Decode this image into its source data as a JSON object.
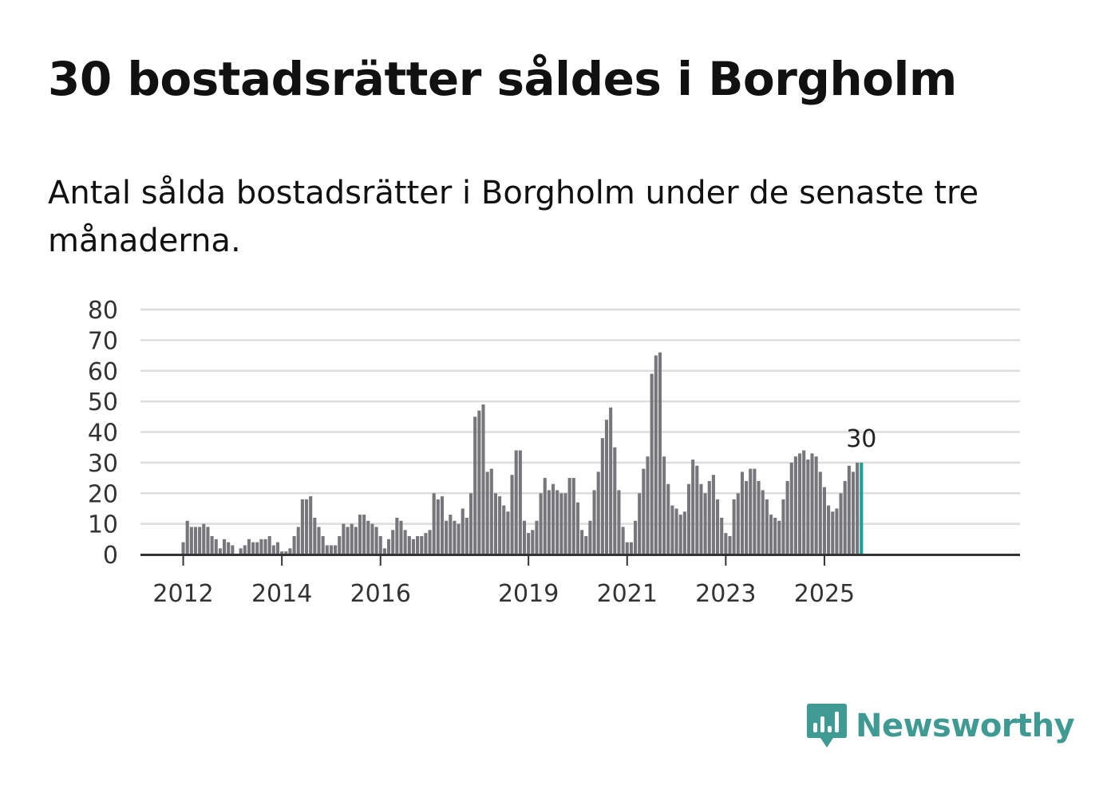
{
  "title": "30 bostadsrätter såldes i Borgholm",
  "subtitle": "Antal sålda bostadsrätter i Borgholm under de senaste tre månaderna.",
  "brand": {
    "name": "Newsworthy",
    "color": "#3f9a93",
    "icon": "newsworthy-logo-icon"
  },
  "colors": {
    "bar": "#77777b",
    "highlight": "#1aa197",
    "grid": "#dddddd",
    "axis": "#333333",
    "text": "#333333"
  },
  "chart_data": {
    "type": "bar",
    "title": "30 bostadsrätter såldes i Borgholm",
    "xlabel": "",
    "ylabel": "",
    "ylim": [
      0,
      80
    ],
    "yticks": [
      "0",
      "10",
      "20",
      "30",
      "40",
      "50",
      "60",
      "70",
      "80"
    ],
    "xticks": [
      {
        "label": "2012",
        "index": 0
      },
      {
        "label": "2014",
        "index": 24
      },
      {
        "label": "2016",
        "index": 48
      },
      {
        "label": "2019",
        "index": 84
      },
      {
        "label": "2021",
        "index": 108
      },
      {
        "label": "2023",
        "index": 132
      },
      {
        "label": "2025",
        "index": 156
      }
    ],
    "start": "2012-01",
    "values": [
      4,
      11,
      9,
      9,
      9,
      10,
      9,
      6,
      5,
      2,
      5,
      4,
      3,
      0,
      2,
      3,
      5,
      4,
      4,
      5,
      5,
      6,
      3,
      4,
      1,
      1,
      2,
      6,
      9,
      18,
      18,
      19,
      12,
      9,
      6,
      3,
      3,
      3,
      6,
      10,
      9,
      10,
      9,
      13,
      13,
      11,
      10,
      9,
      6,
      2,
      5,
      8,
      12,
      11,
      8,
      6,
      5,
      6,
      6,
      7,
      8,
      20,
      18,
      19,
      11,
      13,
      11,
      10,
      15,
      12,
      20,
      45,
      47,
      49,
      27,
      28,
      20,
      19,
      16,
      14,
      26,
      34,
      34,
      11,
      7,
      8,
      11,
      20,
      25,
      21,
      23,
      21,
      20,
      20,
      25,
      25,
      17,
      8,
      6,
      11,
      21,
      27,
      38,
      44,
      48,
      35,
      21,
      9,
      4,
      4,
      11,
      20,
      28,
      32,
      59,
      65,
      66,
      32,
      23,
      16,
      15,
      13,
      14,
      23,
      31,
      29,
      23,
      20,
      24,
      26,
      18,
      12,
      7,
      6,
      18,
      20,
      27,
      24,
      28,
      28,
      24,
      21,
      18,
      13,
      12,
      11,
      18,
      24,
      30,
      32,
      33,
      34,
      31,
      33,
      32,
      27,
      22,
      16,
      14,
      15,
      20,
      24,
      29,
      27,
      30,
      30
    ],
    "highlight_last": true,
    "last_label": "30"
  }
}
